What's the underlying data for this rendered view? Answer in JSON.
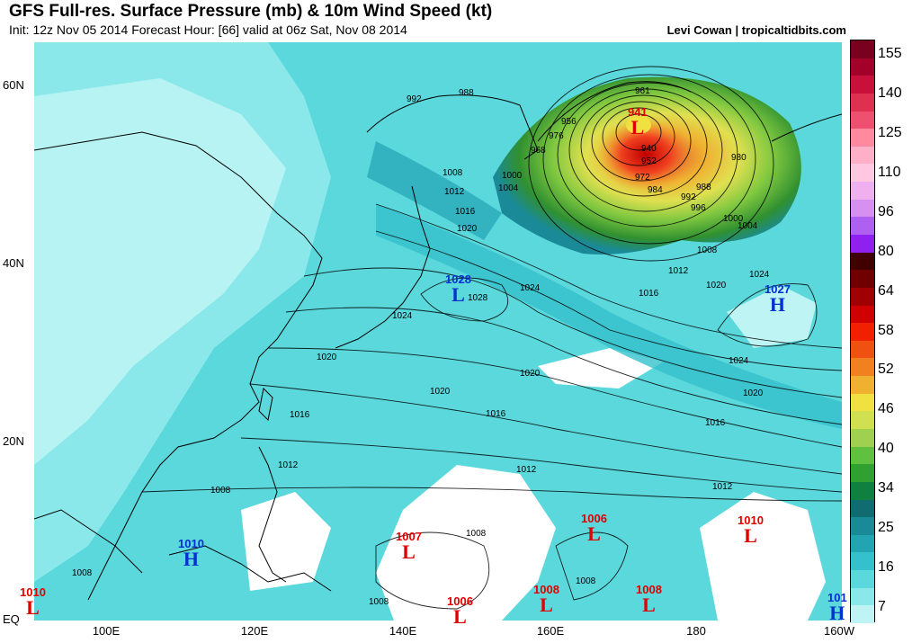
{
  "header": {
    "title": "GFS Full-res. Surface Pressure (mb) & 10m Wind Speed (kt)",
    "subtitle": "Init: 12z Nov 05 2014 Forecast Hour: [66] valid at 06z Sat, Nov 08 2014",
    "credit": "Levi Cowan | tropicaltidbits.com"
  },
  "axes": {
    "lat_labels": [
      "60N",
      "40N",
      "20N",
      "EQ"
    ],
    "lon_labels": [
      "100E",
      "120E",
      "140E",
      "160E",
      "180",
      "160W"
    ]
  },
  "colorbar": {
    "labels": [
      "155",
      "140",
      "125",
      "110",
      "96",
      "80",
      "64",
      "58",
      "52",
      "46",
      "40",
      "34",
      "25",
      "16",
      "7"
    ],
    "colors": [
      "#7a0020",
      "#a3002a",
      "#c8103a",
      "#e03050",
      "#f05070",
      "#ff8aa0",
      "#ffb0c8",
      "#ffc8e0",
      "#f0b0f0",
      "#d890f0",
      "#b060f0",
      "#9020f0",
      "#400000",
      "#700000",
      "#a00000",
      "#d00000",
      "#f02000",
      "#f05010",
      "#f08020",
      "#f0b030",
      "#f0e040",
      "#d0e050",
      "#a0d050",
      "#60c040",
      "#30a030",
      "#108040",
      "#106c70",
      "#1a8a99",
      "#22a4b3",
      "#34c0cc",
      "#5ad8dc",
      "#8ae8ea",
      "#bff4f4"
    ]
  },
  "pressure_systems": [
    {
      "type": "L",
      "value": "941",
      "kind": "low"
    },
    {
      "type": "L",
      "value": "1028",
      "kind": "low"
    },
    {
      "type": "H",
      "value": "1027",
      "kind": "high"
    },
    {
      "type": "H",
      "value": "1010",
      "kind": "high"
    },
    {
      "type": "L",
      "value": "1007",
      "kind": "low"
    },
    {
      "type": "L",
      "value": "1006",
      "kind": "low"
    },
    {
      "type": "L",
      "value": "1010",
      "kind": "low"
    },
    {
      "type": "L",
      "value": "1010",
      "kind": "low"
    },
    {
      "type": "L",
      "value": "1006",
      "kind": "low"
    },
    {
      "type": "L",
      "value": "1008",
      "kind": "low"
    },
    {
      "type": "L",
      "value": "1008",
      "kind": "low"
    },
    {
      "type": "H",
      "value": "101",
      "kind": "high"
    }
  ],
  "contour_labels": [
    "992",
    "988",
    "961",
    "956",
    "976",
    "968",
    "1000",
    "1004",
    "1008",
    "1012",
    "1016",
    "1020",
    "940",
    "952",
    "972",
    "984",
    "992",
    "996",
    "988",
    "980",
    "1000",
    "1004",
    "1008",
    "1012",
    "1016",
    "1020",
    "1024",
    "1028",
    "1024",
    "1024",
    "1020",
    "1020",
    "1020",
    "1024",
    "1020",
    "1016",
    "1016",
    "1016",
    "1012",
    "1012",
    "1012",
    "1008",
    "1008",
    "1008",
    "1008",
    "1008"
  ]
}
